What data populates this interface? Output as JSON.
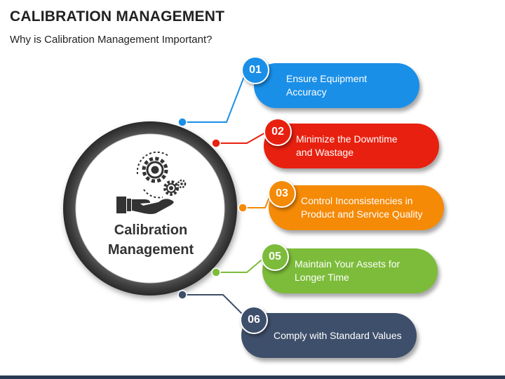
{
  "header": {
    "title": "CALIBRATION MANAGEMENT",
    "subtitle": "Why is Calibration Management Important?"
  },
  "center": {
    "label": "Calibration Management",
    "icon": "gears-hand-icon"
  },
  "items": [
    {
      "number": "01",
      "text": "Ensure Equipment Accuracy",
      "color": "#1a8fe8"
    },
    {
      "number": "02",
      "text": "Minimize the Downtime and Wastage",
      "color": "#e8200f"
    },
    {
      "number": "03",
      "text": "Control Inconsistencies in Product and Service Quality",
      "color": "#f58a07"
    },
    {
      "number": "05",
      "text": "Maintain Your Assets for Longer Time",
      "color": "#7cbc3a"
    },
    {
      "number": "06",
      "text": "Comply with Standard Values",
      "color": "#3e4f6b"
    }
  ]
}
